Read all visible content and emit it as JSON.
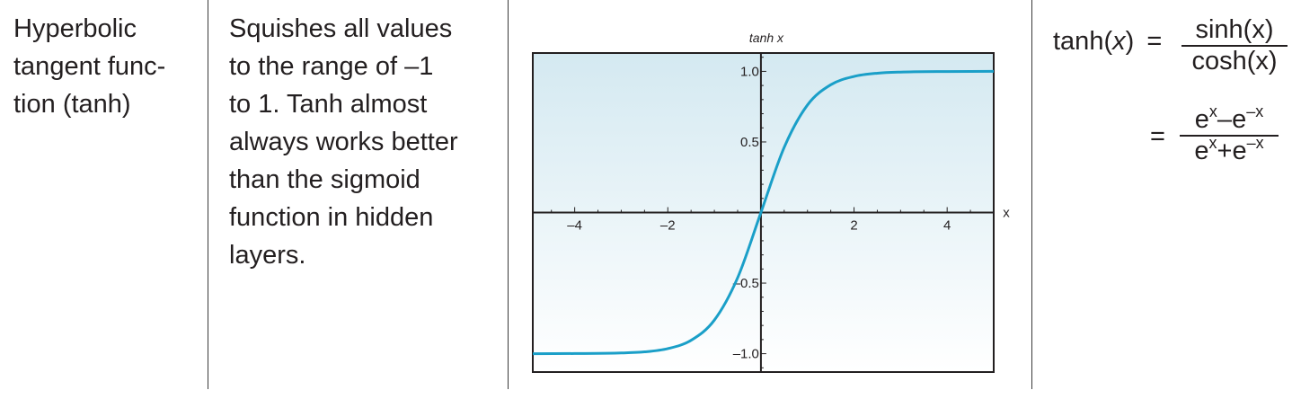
{
  "row": {
    "name_lines": [
      "Hyperbolic",
      "tangent func-",
      "tion (tanh)"
    ],
    "description_lines": [
      "Squishes all values",
      "to the range of –1",
      "to 1. Tanh almost",
      "always works better",
      "than the sigmoid",
      "function in hidden",
      "layers."
    ]
  },
  "formula": {
    "lhs_fn": "tanh(",
    "lhs_var": "x",
    "lhs_close": ")",
    "eq1": "=",
    "f1_num": "sinh(x)",
    "f1_den": "cosh(x)",
    "eq2": "=",
    "f2_num_a": "e",
    "f2_num_a_sup": "x",
    "f2_num_op": "–",
    "f2_num_b": "e",
    "f2_num_b_sup": "–x",
    "f2_den_a": "e",
    "f2_den_a_sup": "x",
    "f2_den_op": "+",
    "f2_den_b": "e",
    "f2_den_b_sup": "–x"
  },
  "chart_data": {
    "type": "line",
    "title": "tanh x",
    "xlabel": "x",
    "ylabel": "",
    "xlim": [
      -4.9,
      5.0
    ],
    "ylim": [
      -1.13,
      1.13
    ],
    "x_ticks": [
      -4,
      -2,
      2,
      4
    ],
    "x_tick_labels": [
      "–4",
      "–2",
      "2",
      "4"
    ],
    "y_ticks": [
      -1.0,
      -0.5,
      0.5,
      1.0
    ],
    "y_tick_labels": [
      "–1.0",
      "–0.5",
      "0.5",
      "1.0"
    ],
    "series": [
      {
        "x": [
          -4.9,
          -4,
          -3,
          -2.5,
          -2,
          -1.5,
          -1,
          -0.5,
          0,
          0.5,
          1,
          1.5,
          2,
          2.5,
          3,
          4,
          5
        ],
        "y": [
          -1.0,
          -0.999,
          -0.995,
          -0.987,
          -0.964,
          -0.905,
          -0.762,
          -0.462,
          0,
          0.462,
          0.762,
          0.905,
          0.964,
          0.987,
          0.995,
          0.999,
          1.0
        ],
        "color": "#1a9fc8"
      }
    ],
    "background_gradient": [
      "#d4e9f1",
      "#ffffff"
    ],
    "grid": false
  }
}
